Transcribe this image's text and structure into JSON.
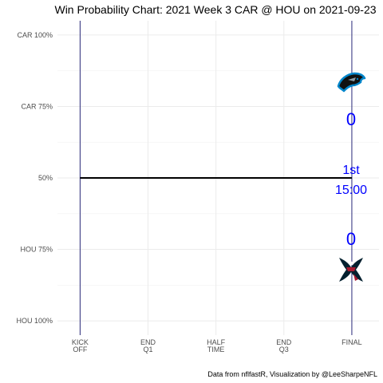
{
  "chart_data": {
    "type": "line",
    "title": "Win Probability Chart: 2021 Week 3 CAR @ HOU on 2021-09-23",
    "caption": "Data from nflfastR, Visualization by @LeeSharpeNFL",
    "y_ticks": [
      {
        "value": 1.0,
        "label": "CAR 100%"
      },
      {
        "value": 0.75,
        "label": "CAR 75%"
      },
      {
        "value": 0.5,
        "label": "50%"
      },
      {
        "value": 0.25,
        "label": "HOU 75%"
      },
      {
        "value": 0.0,
        "label": "HOU 100%"
      }
    ],
    "x_ticks": [
      {
        "value": 0,
        "label": [
          "KICK",
          "OFF"
        ]
      },
      {
        "value": 15,
        "label": [
          "END",
          "Q1"
        ]
      },
      {
        "value": 30,
        "label": [
          "HALF",
          "TIME"
        ]
      },
      {
        "value": 45,
        "label": [
          "END",
          "Q3"
        ]
      },
      {
        "value": 60,
        "label": [
          "FINAL"
        ]
      }
    ],
    "xlim": [
      -5,
      66
    ],
    "ylim": [
      -0.05,
      1.05
    ],
    "series": [
      {
        "x": [
          0,
          60
        ],
        "y": [
          0.5,
          0.5
        ],
        "color": "#000000"
      }
    ],
    "vlines": [
      0,
      60
    ],
    "vline_color": "#2a2a7a",
    "grid": true,
    "away": {
      "team": "CAR",
      "score": "0",
      "logo_icon": "panthers-logo-icon"
    },
    "home": {
      "team": "HOU",
      "score": "0",
      "logo_icon": "texans-logo-icon"
    },
    "game_clock": {
      "quarter": "1st",
      "time": "15:00"
    },
    "annotation_color": "#0000ff"
  }
}
